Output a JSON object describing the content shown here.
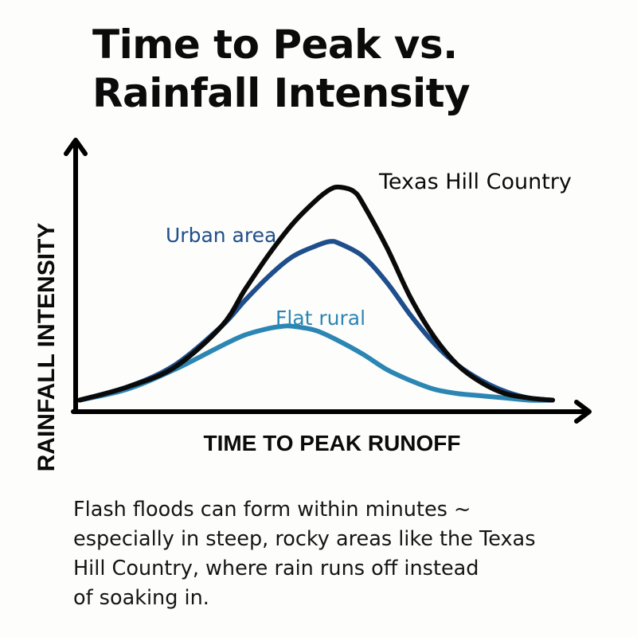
{
  "title_lines": [
    "Time to Peak vs.",
    "Rainfall Intensity"
  ],
  "caption_lines": [
    "Flash floods can form within minutes ~",
    "especially in steep, rocky areas like the Texas",
    "Hill Country, where rain runs off instead",
    "of soaking in."
  ],
  "chart_data": {
    "type": "line",
    "title": "Time to Peak vs. Rainfall Intensity",
    "xlabel": "TIME TO PEAK RUNOFF",
    "ylabel": "RAINFALL INTENSITY",
    "xlim": [
      0,
      100
    ],
    "ylim": [
      0,
      100
    ],
    "grid": false,
    "axis_ticks": false,
    "series": [
      {
        "name": "Texas Hill Country",
        "color": "#0a0a0a",
        "x": [
          0,
          10,
          20,
          30,
          35,
          40,
          45,
          50,
          53,
          55,
          58,
          60,
          65,
          70,
          75,
          80,
          85,
          90,
          95,
          100
        ],
        "y": [
          2,
          8,
          17,
          36,
          53,
          69,
          83,
          94,
          99,
          100,
          98,
          92,
          72,
          49,
          31,
          18,
          10,
          5,
          3,
          2
        ]
      },
      {
        "name": "Urban area",
        "color": "#1f4e8c",
        "x": [
          0,
          10,
          20,
          30,
          35,
          40,
          45,
          50,
          53,
          55,
          60,
          65,
          70,
          75,
          80,
          85,
          90,
          95,
          100
        ],
        "y": [
          2,
          8,
          18,
          36,
          48,
          59,
          68,
          73,
          75,
          74,
          68,
          56,
          41,
          28,
          18,
          11,
          6,
          3,
          2
        ]
      },
      {
        "name": "Flat rural",
        "color": "#2b86b4",
        "x": [
          0,
          10,
          20,
          30,
          35,
          40,
          43,
          45,
          50,
          55,
          60,
          65,
          70,
          75,
          80,
          85,
          90,
          95,
          100
        ],
        "y": [
          2,
          7,
          16,
          27,
          32,
          35,
          36,
          36,
          34,
          29,
          23,
          16,
          11,
          7,
          5,
          4,
          3,
          2,
          2
        ]
      }
    ],
    "annotations": [
      {
        "text": "Texas Hill Country",
        "series": "Texas Hill Country",
        "color": "#0a0a0a"
      },
      {
        "text": "Urban area",
        "series": "Urban area",
        "color": "#1f4e8c"
      },
      {
        "text": "Flat rural",
        "series": "Flat rural",
        "color": "#2b86b4"
      }
    ]
  }
}
